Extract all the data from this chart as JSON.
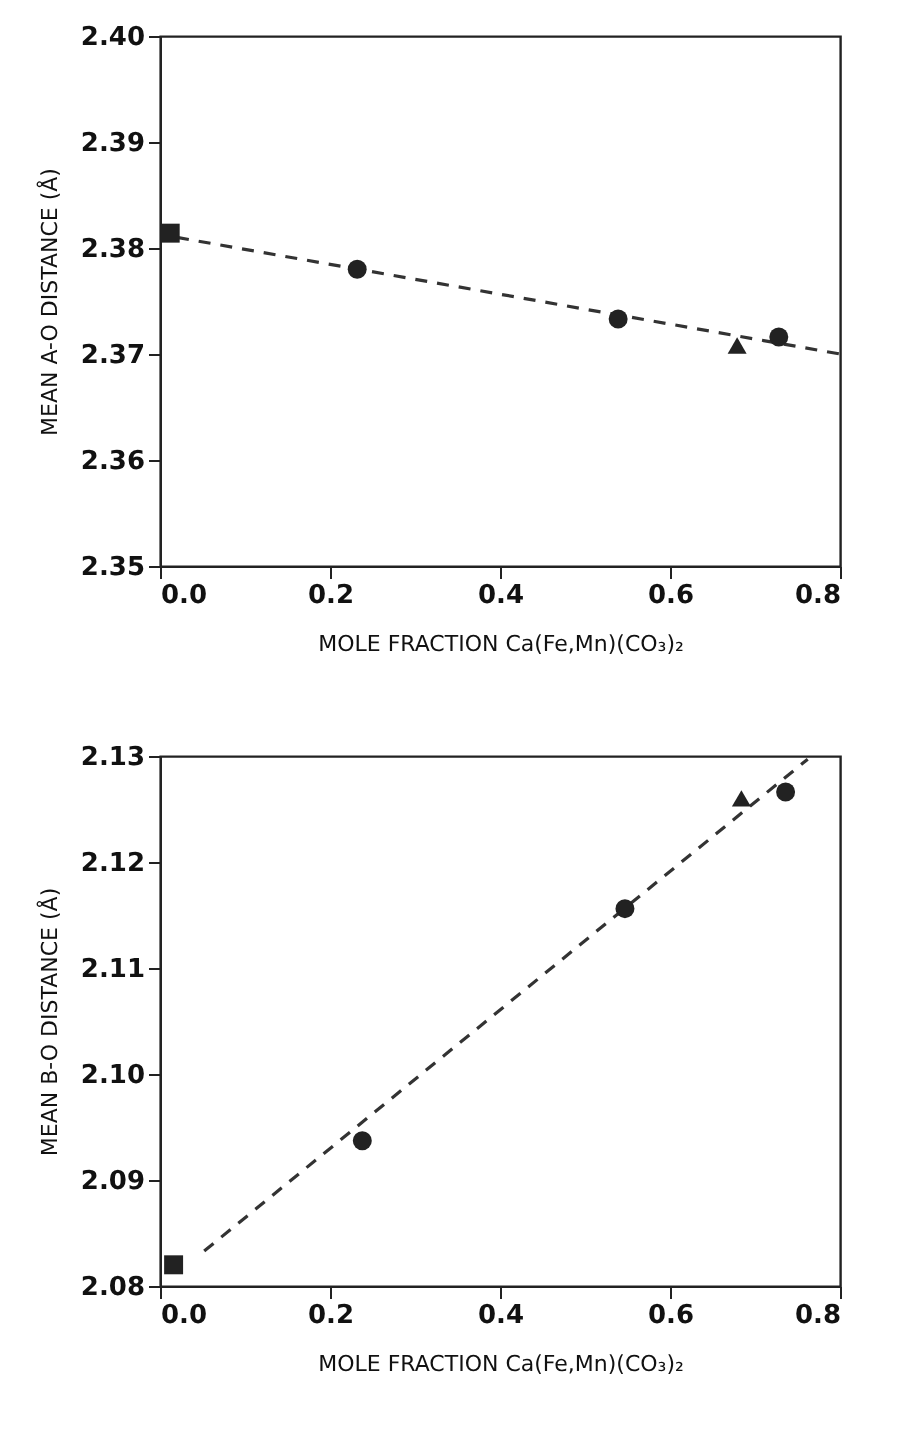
{
  "chart_data": [
    {
      "type": "scatter",
      "xlabel": "MOLE FRACTION  Ca(Fe,Mn)(CO₃)₂",
      "ylabel": "MEAN A-O DISTANCE (Å)",
      "xlim": [
        0.0,
        0.8
      ],
      "xticks": [
        {
          "value": 0,
          "label": "0.0"
        },
        0.2,
        0.4,
        0.6,
        0.8
      ],
      "ylim": [
        2.35,
        2.4
      ],
      "yticks": [
        2.35,
        2.36,
        2.37,
        2.38,
        2.39,
        {
          "value": 2.4,
          "label": "2.40"
        }
      ],
      "grid": false,
      "series": [
        {
          "type": "line",
          "color": "#333333",
          "line_style": "dashed",
          "marker": "none",
          "x": [
            0.02,
            0.8
          ],
          "values": [
            2.381,
            2.37
          ]
        },
        {
          "color": "#222222",
          "marker": "square",
          "x": [
            0.012
          ],
          "values": [
            2.3814
          ]
        },
        {
          "color": "#222222",
          "marker": "circle",
          "x": [
            0.232,
            0.539,
            0.728
          ],
          "values": [
            2.378,
            2.3733,
            2.3716
          ]
        },
        {
          "color": "#222222",
          "marker": "triangle",
          "x": [
            0.679
          ],
          "values": [
            2.3708
          ]
        }
      ]
    },
    {
      "type": "scatter",
      "xlabel": "MOLE FRACTION  Ca(Fe,Mn)(CO₃)₂",
      "ylabel": "MEAN B-O DISTANCE (Å)",
      "xlim": [
        0.0,
        0.8
      ],
      "xticks": [
        {
          "value": 0,
          "label": "0.0"
        },
        0.2,
        0.4,
        0.6,
        0.8
      ],
      "ylim": [
        2.08,
        2.13
      ],
      "yticks": [
        2.08,
        2.09,
        {
          "value": 2.1,
          "label": "2.10"
        },
        2.11,
        2.12,
        2.13
      ],
      "grid": false,
      "series": [
        {
          "type": "line",
          "color": "#333333",
          "line_style": "dashed",
          "marker": "none",
          "x": [
            0.052,
            0.762
          ],
          "values": [
            2.0833,
            2.1297
          ]
        },
        {
          "color": "#222222",
          "marker": "square",
          "x": [
            0.016
          ],
          "values": [
            2.082
          ]
        },
        {
          "color": "#222222",
          "marker": "circle",
          "x": [
            0.238,
            0.547,
            0.736
          ],
          "values": [
            2.0937,
            2.1156,
            2.1266
          ]
        },
        {
          "color": "#222222",
          "marker": "triangle",
          "x": [
            0.684
          ],
          "values": [
            2.126
          ]
        }
      ]
    }
  ]
}
